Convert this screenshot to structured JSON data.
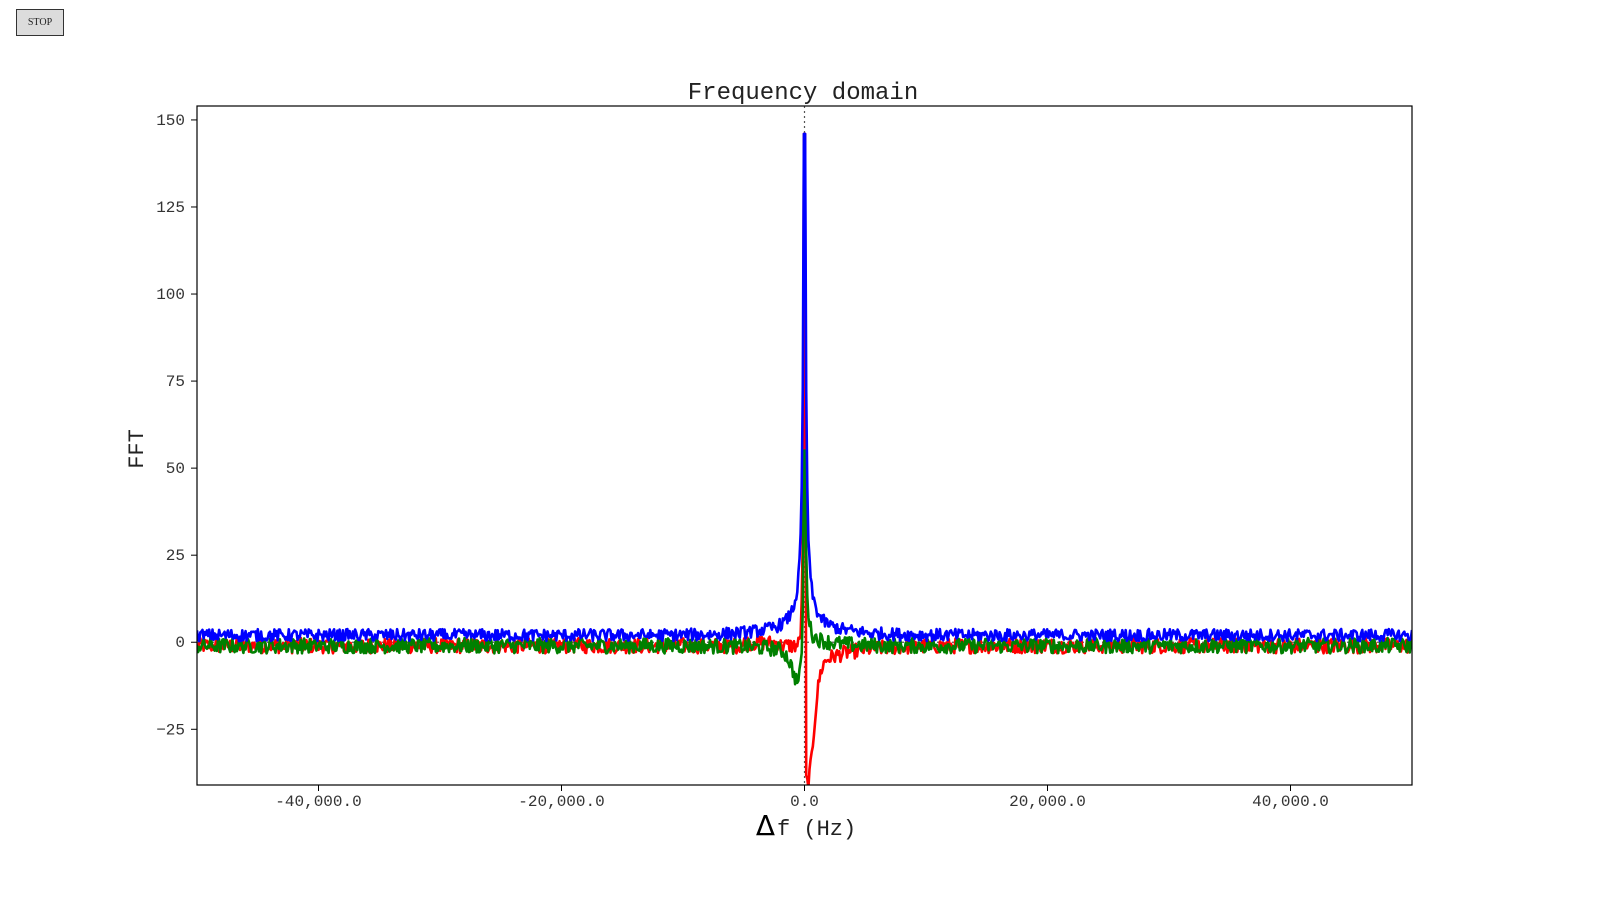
{
  "controls": {
    "stop_label": "STOP"
  },
  "chart_data": {
    "type": "line",
    "title": "Frequency domain",
    "xlabel_symbol": "Δ",
    "xlabel": "f (Hz)",
    "ylabel": "FFT",
    "xlim": [
      -50000,
      50000
    ],
    "ylim": [
      -41,
      154
    ],
    "x_ticks": [
      -40000,
      -20000,
      0,
      20000,
      40000
    ],
    "x_tick_labels": [
      "-40,000.0",
      "-20,000.0",
      "0.0",
      "20,000.0",
      "40,000.0"
    ],
    "y_ticks": [
      150,
      125,
      100,
      75,
      50,
      25,
      0,
      -25
    ],
    "y_tick_labels": [
      "150",
      "125",
      "100",
      "75",
      "50",
      "25",
      "0",
      "−25"
    ],
    "reference_lines": {
      "x": 0,
      "y": 0,
      "style": "dotted"
    },
    "series": [
      {
        "color": "#ff0000",
        "peak_x": 0,
        "peak_y": 146,
        "min_y": -32,
        "baseline": -1
      },
      {
        "color": "#008000",
        "peak_x": 0,
        "peak_y": 55,
        "min_y": -11,
        "baseline": -1
      },
      {
        "color": "#0000ff",
        "peak_x": 0,
        "peak_y": 146,
        "min_y": 0,
        "baseline": 2
      }
    ]
  }
}
